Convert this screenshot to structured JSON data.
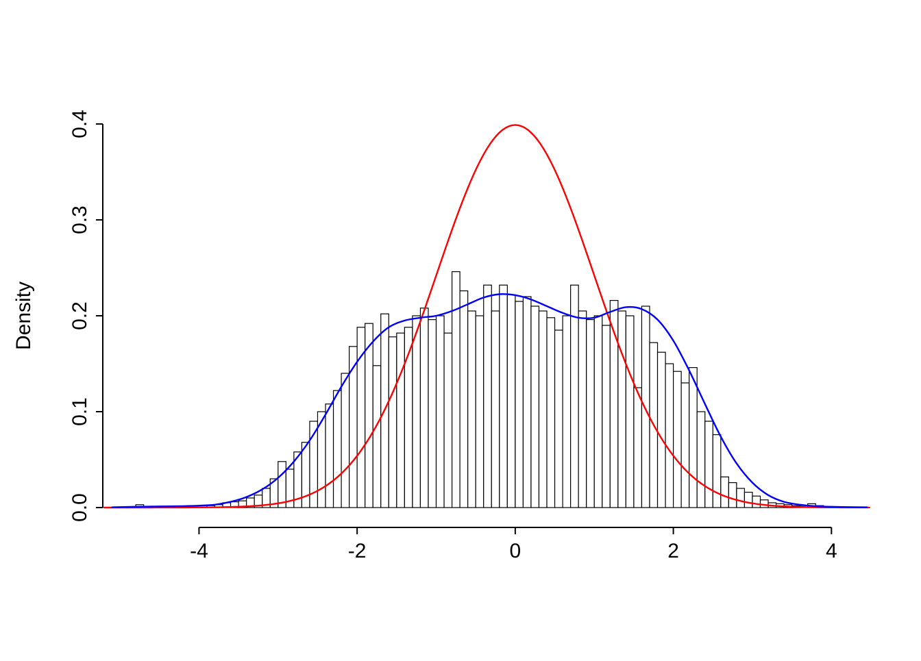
{
  "chart_data": {
    "type": "histogram+lines",
    "title": "",
    "xlabel": "",
    "ylabel": "Density",
    "xlim": [
      -5.2,
      4.5
    ],
    "ylim": [
      0,
      0.4
    ],
    "grid": false,
    "legend": "none",
    "x_ticks": [
      -4,
      -2,
      0,
      2,
      4
    ],
    "x_tick_labels": [
      "-4",
      "-2",
      "0",
      "2",
      "4"
    ],
    "y_ticks": [
      0.0,
      0.1,
      0.2,
      0.3,
      0.4
    ],
    "y_tick_labels": [
      "0.0",
      "0.1",
      "0.2",
      "0.3",
      "0.4"
    ],
    "colors": {
      "background": "#ffffff",
      "axis": "#000000",
      "bar_fill": "#ffffff",
      "bar_stroke": "#000000",
      "kde_curve": "#0000ff",
      "normal_curve": "#ff0000"
    },
    "histogram": {
      "bin_start": -4.8,
      "bin_width": 0.1,
      "densities": [
        0.003,
        0,
        0,
        0,
        0,
        0,
        0,
        0,
        0,
        0.002,
        0.003,
        0.005,
        0.006,
        0.007,
        0.01,
        0.013,
        0.02,
        0.03,
        0.048,
        0.04,
        0.058,
        0.068,
        0.09,
        0.1,
        0.108,
        0.122,
        0.14,
        0.168,
        0.188,
        0.192,
        0.148,
        0.202,
        0.178,
        0.182,
        0.188,
        0.2,
        0.208,
        0.196,
        0.2,
        0.182,
        0.246,
        0.226,
        0.205,
        0.2,
        0.232,
        0.205,
        0.232,
        0.222,
        0.215,
        0.22,
        0.21,
        0.205,
        0.198,
        0.185,
        0.2,
        0.232,
        0.205,
        0.196,
        0.2,
        0.19,
        0.216,
        0.205,
        0.2,
        0.125,
        0.21,
        0.172,
        0.162,
        0.15,
        0.142,
        0.13,
        0.146,
        0.1,
        0.09,
        0.076,
        0.032,
        0.026,
        0.02,
        0.016,
        0.012,
        0.008,
        0.005,
        0.004,
        0.003,
        0.002,
        0.002,
        0.004,
        0.002
      ]
    },
    "kde_curve_points": [
      [
        -5.1,
        0.0003
      ],
      [
        -4.8,
        0.0008
      ],
      [
        -4.5,
        0.0012
      ],
      [
        -4.2,
        0.0015
      ],
      [
        -4.0,
        0.002
      ],
      [
        -3.8,
        0.003
      ],
      [
        -3.6,
        0.006
      ],
      [
        -3.4,
        0.011
      ],
      [
        -3.2,
        0.019
      ],
      [
        -3.0,
        0.031
      ],
      [
        -2.8,
        0.048
      ],
      [
        -2.6,
        0.07
      ],
      [
        -2.4,
        0.097
      ],
      [
        -2.2,
        0.126
      ],
      [
        -2.0,
        0.152
      ],
      [
        -1.8,
        0.173
      ],
      [
        -1.6,
        0.188
      ],
      [
        -1.4,
        0.195
      ],
      [
        -1.2,
        0.198
      ],
      [
        -1.0,
        0.2
      ],
      [
        -0.8,
        0.205
      ],
      [
        -0.6,
        0.212
      ],
      [
        -0.4,
        0.219
      ],
      [
        -0.2,
        0.2225
      ],
      [
        0.0,
        0.2215
      ],
      [
        0.2,
        0.217
      ],
      [
        0.4,
        0.21
      ],
      [
        0.6,
        0.203
      ],
      [
        0.8,
        0.198
      ],
      [
        1.0,
        0.198
      ],
      [
        1.2,
        0.204
      ],
      [
        1.4,
        0.209
      ],
      [
        1.6,
        0.207
      ],
      [
        1.8,
        0.196
      ],
      [
        2.0,
        0.174
      ],
      [
        2.2,
        0.143
      ],
      [
        2.4,
        0.108
      ],
      [
        2.6,
        0.074
      ],
      [
        2.8,
        0.046
      ],
      [
        3.0,
        0.026
      ],
      [
        3.2,
        0.013
      ],
      [
        3.4,
        0.006
      ],
      [
        3.6,
        0.003
      ],
      [
        3.8,
        0.0015
      ],
      [
        4.0,
        0.0008
      ],
      [
        4.3,
        0.0004
      ],
      [
        4.45,
        0.0003
      ]
    ],
    "normal_curve": {
      "mean": 0,
      "sd": 1,
      "peak_density": 0.4
    }
  }
}
